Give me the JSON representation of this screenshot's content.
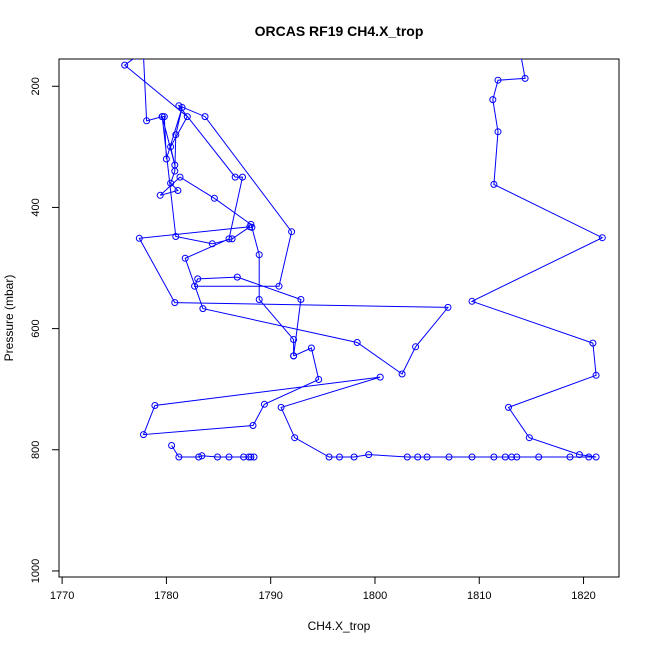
{
  "chart_data": {
    "type": "line",
    "title": "ORCAS RF19 CH4.X_trop",
    "xlabel": "CH4.X_trop",
    "ylabel": "Pressure (mbar)",
    "xlim": [
      1769.7,
      1823.4
    ],
    "ylim": [
      1010,
      155
    ],
    "y_reversed": true,
    "x_ticks": [
      1770,
      1780,
      1790,
      1800,
      1810,
      1820
    ],
    "y_ticks": [
      200,
      400,
      600,
      800,
      1000
    ],
    "grid": false,
    "series": [
      {
        "color": "#0000ff",
        "marker": "open-circle",
        "points": [
          [
            1777.2,
            150
          ],
          [
            1776.0,
            165
          ],
          [
            1782.0,
            250
          ],
          [
            1780.4,
            300
          ],
          [
            1780.8,
            330
          ],
          [
            1779.6,
            250
          ],
          [
            1779.8,
            250
          ],
          [
            1780.0,
            320
          ],
          [
            1781.5,
            235
          ],
          [
            1780.9,
            280
          ],
          [
            1780.8,
            340
          ],
          [
            1780.4,
            360
          ],
          [
            1781.1,
            372
          ],
          [
            1779.4,
            380
          ],
          [
            1781.3,
            350
          ],
          [
            1784.6,
            385
          ],
          [
            1788.1,
            428
          ],
          [
            1788.2,
            433
          ],
          [
            1788.9,
            478
          ],
          [
            1788.9,
            552
          ],
          [
            1792.2,
            618
          ],
          [
            1792.2,
            645
          ],
          [
            1792.9,
            552
          ],
          [
            1786.8,
            515
          ],
          [
            1783.0,
            518
          ],
          [
            1782.7,
            530
          ],
          [
            1790.8,
            530
          ],
          [
            1792.0,
            440
          ],
          [
            1783.7,
            250
          ],
          [
            1781.2,
            232
          ],
          [
            1786.6,
            350
          ],
          [
            1787.3,
            350
          ],
          [
            1786.0,
            452
          ],
          [
            1781.8,
            484
          ],
          [
            1783.5,
            567
          ],
          [
            1798.3,
            623
          ],
          [
            1802.6,
            675
          ],
          [
            1803.9,
            630
          ],
          [
            1807.0,
            565
          ],
          [
            1780.8,
            557
          ],
          [
            1777.4,
            451
          ],
          [
            1788.0,
            432
          ],
          [
            1786.3,
            452
          ],
          [
            1784.4,
            460
          ],
          [
            1780.9,
            448
          ],
          [
            1779.6,
            250
          ],
          [
            1778.1,
            257
          ],
          [
            1777.8,
            150
          ],
          [
            1776.1,
            150
          ]
        ]
      },
      {
        "color": "#0000ff",
        "marker": "open-circle",
        "points": [
          [
            1814.0,
            150
          ],
          [
            1814.4,
            187
          ],
          [
            1811.8,
            190
          ],
          [
            1811.3,
            222
          ],
          [
            1811.8,
            275
          ],
          [
            1811.4,
            362
          ],
          [
            1821.8,
            450
          ],
          [
            1809.3,
            555
          ],
          [
            1820.9,
            624
          ],
          [
            1821.2,
            677
          ],
          [
            1812.8,
            730
          ],
          [
            1814.8,
            780
          ],
          [
            1819.6,
            808
          ],
          [
            1821.2,
            812
          ],
          [
            1820.5,
            812
          ],
          [
            1818.7,
            812
          ],
          [
            1815.7,
            812
          ],
          [
            1813.6,
            812
          ],
          [
            1813.1,
            812
          ],
          [
            1812.5,
            812
          ],
          [
            1811.4,
            812
          ],
          [
            1809.3,
            812
          ],
          [
            1807.1,
            812
          ],
          [
            1805.0,
            812
          ],
          [
            1804.1,
            812
          ],
          [
            1803.1,
            812
          ],
          [
            1799.4,
            808
          ],
          [
            1798.0,
            812
          ],
          [
            1796.6,
            812
          ],
          [
            1795.6,
            812
          ],
          [
            1792.3,
            780
          ],
          [
            1791.0,
            730
          ],
          [
            1800.5,
            680
          ],
          [
            1778.9,
            727
          ],
          [
            1777.8,
            775
          ],
          [
            1788.3,
            760
          ],
          [
            1789.4,
            725
          ],
          [
            1794.6,
            684
          ],
          [
            1793.9,
            632
          ],
          [
            1792.2,
            645
          ]
        ]
      },
      {
        "color": "#0000ff",
        "marker": "open-circle",
        "points": [
          [
            1780.5,
            793
          ],
          [
            1781.2,
            812
          ],
          [
            1783.1,
            812
          ],
          [
            1783.4,
            810
          ],
          [
            1784.9,
            812
          ],
          [
            1786.0,
            812
          ],
          [
            1787.4,
            812
          ],
          [
            1788.1,
            812
          ],
          [
            1788.4,
            812
          ],
          [
            1787.9,
            812
          ]
        ]
      }
    ]
  }
}
